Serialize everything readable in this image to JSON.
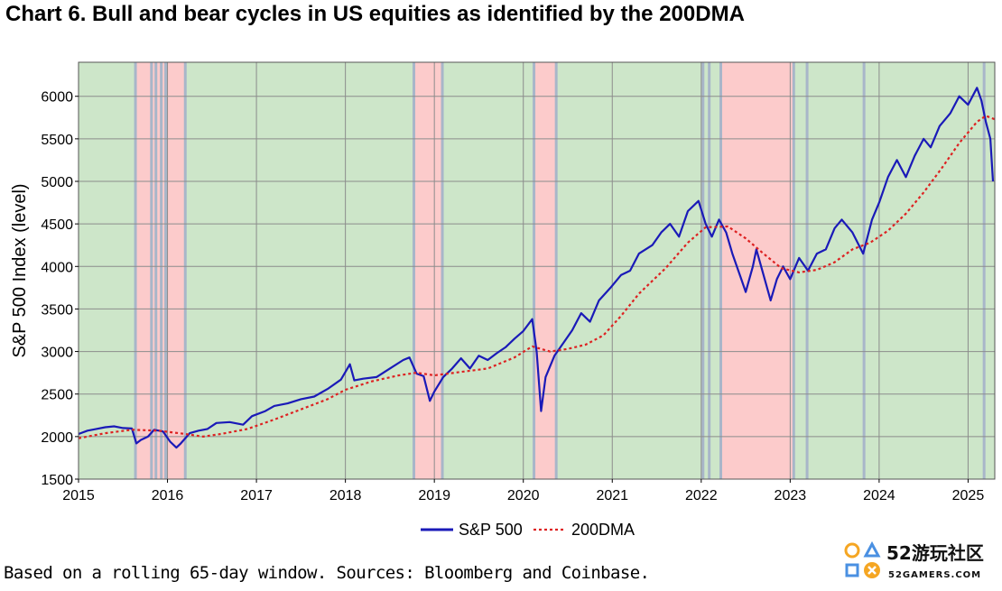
{
  "title": "Chart 6. Bull and bear cycles in US equities as identified by the 200DMA",
  "footnote": "Based on a rolling 65-day window. Sources: Bloomberg and Coinbase.",
  "logo": {
    "text": "52游玩社区",
    "subtext": "52GAMERS.COM",
    "icon": "playstation-buttons-icon"
  },
  "colors": {
    "bull": "#cde6c9",
    "bear": "#fccbcb",
    "transition": "#a8b6c9",
    "sp500": "#1a1ab8",
    "dma": "#dd2222",
    "grid": "#8c8c8c"
  },
  "chart_data": {
    "type": "line",
    "ylabel": "S&P 500 Index (level)",
    "xlabel": "",
    "ylim": [
      1500,
      6400
    ],
    "xlim": [
      2015.0,
      2025.3
    ],
    "yticks": [
      1500,
      2000,
      2500,
      3000,
      3500,
      4000,
      4500,
      5000,
      5500,
      6000
    ],
    "xticks": [
      "2015",
      "2016",
      "2017",
      "2018",
      "2019",
      "2020",
      "2021",
      "2022",
      "2023",
      "2024",
      "2025"
    ],
    "grid": true,
    "legend_position": "bottom-center",
    "regimes": [
      {
        "start": 2015.0,
        "end": 2015.64,
        "state": "bull"
      },
      {
        "start": 2015.64,
        "end": 2016.2,
        "state": "bear"
      },
      {
        "start": 2016.2,
        "end": 2018.77,
        "state": "bull"
      },
      {
        "start": 2018.77,
        "end": 2019.09,
        "state": "bear"
      },
      {
        "start": 2019.09,
        "end": 2020.12,
        "state": "bull"
      },
      {
        "start": 2020.12,
        "end": 2020.37,
        "state": "bear"
      },
      {
        "start": 2020.37,
        "end": 2022.22,
        "state": "bull"
      },
      {
        "start": 2022.22,
        "end": 2023.04,
        "state": "bear"
      },
      {
        "start": 2023.04,
        "end": 2025.3,
        "state": "bull"
      }
    ],
    "transitions": [
      2015.64,
      2015.82,
      2015.87,
      2015.93,
      2015.98,
      2016.2,
      2018.77,
      2019.09,
      2020.12,
      2020.37,
      2022.02,
      2022.09,
      2022.22,
      2023.04,
      2023.19,
      2023.83,
      2025.18
    ],
    "series": [
      {
        "name": "S&P 500",
        "style": "solid",
        "points": [
          [
            2015.0,
            2030
          ],
          [
            2015.1,
            2070
          ],
          [
            2015.2,
            2090
          ],
          [
            2015.3,
            2110
          ],
          [
            2015.4,
            2120
          ],
          [
            2015.5,
            2100
          ],
          [
            2015.6,
            2095
          ],
          [
            2015.65,
            1920
          ],
          [
            2015.7,
            1960
          ],
          [
            2015.78,
            2000
          ],
          [
            2015.85,
            2080
          ],
          [
            2015.95,
            2060
          ],
          [
            2016.03,
            1940
          ],
          [
            2016.1,
            1870
          ],
          [
            2016.15,
            1920
          ],
          [
            2016.25,
            2040
          ],
          [
            2016.35,
            2070
          ],
          [
            2016.45,
            2090
          ],
          [
            2016.55,
            2160
          ],
          [
            2016.7,
            2170
          ],
          [
            2016.85,
            2140
          ],
          [
            2016.95,
            2240
          ],
          [
            2017.1,
            2300
          ],
          [
            2017.2,
            2360
          ],
          [
            2017.35,
            2390
          ],
          [
            2017.5,
            2440
          ],
          [
            2017.65,
            2470
          ],
          [
            2017.8,
            2560
          ],
          [
            2017.95,
            2670
          ],
          [
            2018.05,
            2850
          ],
          [
            2018.1,
            2660
          ],
          [
            2018.2,
            2680
          ],
          [
            2018.35,
            2700
          ],
          [
            2018.5,
            2800
          ],
          [
            2018.65,
            2900
          ],
          [
            2018.72,
            2930
          ],
          [
            2018.8,
            2740
          ],
          [
            2018.88,
            2710
          ],
          [
            2018.95,
            2420
          ],
          [
            2019.0,
            2530
          ],
          [
            2019.1,
            2700
          ],
          [
            2019.2,
            2800
          ],
          [
            2019.3,
            2920
          ],
          [
            2019.4,
            2800
          ],
          [
            2019.5,
            2950
          ],
          [
            2019.6,
            2900
          ],
          [
            2019.7,
            2980
          ],
          [
            2019.8,
            3050
          ],
          [
            2019.9,
            3150
          ],
          [
            2020.0,
            3240
          ],
          [
            2020.1,
            3380
          ],
          [
            2020.15,
            3000
          ],
          [
            2020.2,
            2300
          ],
          [
            2020.25,
            2700
          ],
          [
            2020.35,
            2950
          ],
          [
            2020.45,
            3100
          ],
          [
            2020.55,
            3250
          ],
          [
            2020.65,
            3450
          ],
          [
            2020.75,
            3350
          ],
          [
            2020.85,
            3600
          ],
          [
            2020.98,
            3750
          ],
          [
            2021.1,
            3900
          ],
          [
            2021.2,
            3950
          ],
          [
            2021.3,
            4150
          ],
          [
            2021.45,
            4250
          ],
          [
            2021.55,
            4400
          ],
          [
            2021.65,
            4500
          ],
          [
            2021.75,
            4350
          ],
          [
            2021.85,
            4650
          ],
          [
            2021.97,
            4770
          ],
          [
            2022.05,
            4500
          ],
          [
            2022.12,
            4350
          ],
          [
            2022.2,
            4550
          ],
          [
            2022.28,
            4400
          ],
          [
            2022.35,
            4150
          ],
          [
            2022.45,
            3850
          ],
          [
            2022.5,
            3700
          ],
          [
            2022.58,
            4000
          ],
          [
            2022.62,
            4200
          ],
          [
            2022.7,
            3900
          ],
          [
            2022.78,
            3600
          ],
          [
            2022.85,
            3850
          ],
          [
            2022.92,
            4000
          ],
          [
            2023.0,
            3850
          ],
          [
            2023.1,
            4100
          ],
          [
            2023.2,
            3950
          ],
          [
            2023.3,
            4150
          ],
          [
            2023.4,
            4200
          ],
          [
            2023.5,
            4450
          ],
          [
            2023.58,
            4550
          ],
          [
            2023.7,
            4400
          ],
          [
            2023.82,
            4150
          ],
          [
            2023.92,
            4550
          ],
          [
            2024.0,
            4750
          ],
          [
            2024.1,
            5050
          ],
          [
            2024.2,
            5250
          ],
          [
            2024.3,
            5050
          ],
          [
            2024.4,
            5300
          ],
          [
            2024.5,
            5500
          ],
          [
            2024.58,
            5400
          ],
          [
            2024.68,
            5650
          ],
          [
            2024.8,
            5800
          ],
          [
            2024.9,
            6000
          ],
          [
            2025.0,
            5900
          ],
          [
            2025.1,
            6100
          ],
          [
            2025.15,
            5950
          ],
          [
            2025.2,
            5700
          ],
          [
            2025.25,
            5500
          ],
          [
            2025.28,
            5000
          ]
        ]
      },
      {
        "name": "200DMA",
        "style": "dotted",
        "points": [
          [
            2015.0,
            1980
          ],
          [
            2015.3,
            2040
          ],
          [
            2015.6,
            2080
          ],
          [
            2015.9,
            2070
          ],
          [
            2016.2,
            2030
          ],
          [
            2016.4,
            2000
          ],
          [
            2016.6,
            2030
          ],
          [
            2016.9,
            2090
          ],
          [
            2017.2,
            2200
          ],
          [
            2017.5,
            2320
          ],
          [
            2017.8,
            2440
          ],
          [
            2018.0,
            2550
          ],
          [
            2018.3,
            2650
          ],
          [
            2018.6,
            2720
          ],
          [
            2018.8,
            2750
          ],
          [
            2019.0,
            2720
          ],
          [
            2019.3,
            2760
          ],
          [
            2019.6,
            2800
          ],
          [
            2019.9,
            2930
          ],
          [
            2020.1,
            3060
          ],
          [
            2020.3,
            3000
          ],
          [
            2020.5,
            3030
          ],
          [
            2020.7,
            3080
          ],
          [
            2020.9,
            3190
          ],
          [
            2021.1,
            3420
          ],
          [
            2021.3,
            3680
          ],
          [
            2021.6,
            3980
          ],
          [
            2021.85,
            4280
          ],
          [
            2022.05,
            4460
          ],
          [
            2022.3,
            4470
          ],
          [
            2022.5,
            4330
          ],
          [
            2022.7,
            4150
          ],
          [
            2022.9,
            3980
          ],
          [
            2023.1,
            3930
          ],
          [
            2023.3,
            3960
          ],
          [
            2023.5,
            4050
          ],
          [
            2023.7,
            4200
          ],
          [
            2023.9,
            4280
          ],
          [
            2024.1,
            4420
          ],
          [
            2024.3,
            4620
          ],
          [
            2024.5,
            4870
          ],
          [
            2024.7,
            5150
          ],
          [
            2024.9,
            5450
          ],
          [
            2025.1,
            5700
          ],
          [
            2025.2,
            5770
          ],
          [
            2025.3,
            5730
          ]
        ]
      }
    ]
  }
}
